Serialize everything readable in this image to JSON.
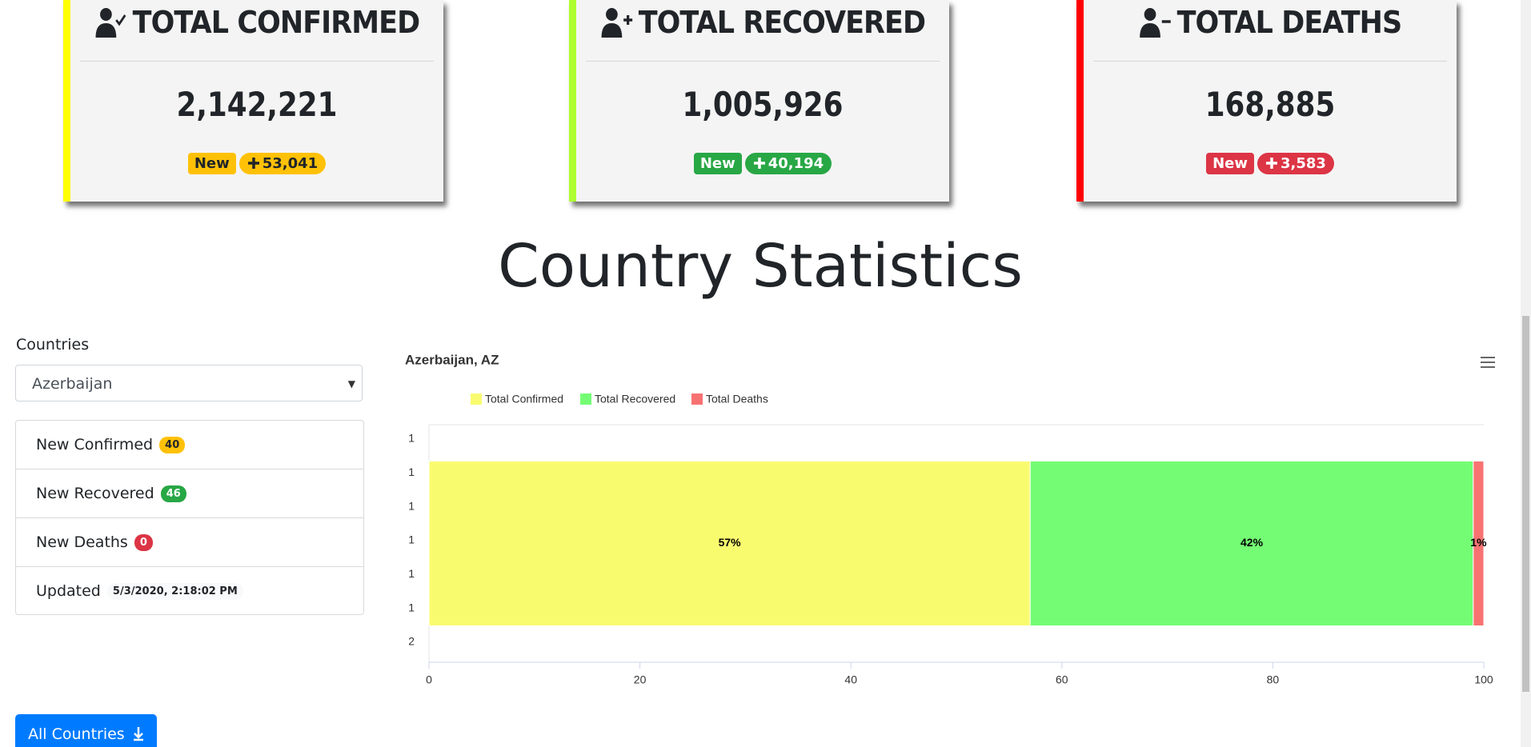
{
  "cards": [
    {
      "title": "TOTAL CONFIRMED",
      "value": "2,142,221",
      "badge": "New",
      "delta": "53,041"
    },
    {
      "title": "TOTAL RECOVERED",
      "value": "1,005,926",
      "badge": "New",
      "delta": "40,194"
    },
    {
      "title": "TOTAL DEATHS",
      "value": "168,885",
      "badge": "New",
      "delta": "3,583"
    }
  ],
  "heading": "Country Statistics",
  "countries_label": "Countries",
  "select": "Azerbaijan",
  "stats": [
    {
      "label": "New Confirmed",
      "value": 40
    },
    {
      "label": "New Recovered",
      "value": 46
    },
    {
      "label": "New Deaths",
      "value": 0
    },
    {
      "label": "Updated",
      "value": "5/3/2020, 2:18:02 PM"
    }
  ],
  "button": "All Countries",
  "chart_data": {
    "type": "bar",
    "orientation": "horizontal",
    "stacked": true,
    "title": "Azerbaijan, AZ",
    "categories": [
      null
    ],
    "series": [
      {
        "name": "Total Confirmed",
        "color": "#f9fb6f",
        "values": [
          57
        ],
        "value_labels": [
          "57%"
        ]
      },
      {
        "name": "Total Recovered",
        "color": "#74fd74",
        "values": [
          42
        ],
        "value_labels": [
          "42%"
        ]
      },
      {
        "name": "Total Deaths",
        "color": "#f87272",
        "values": [
          1
        ],
        "value_labels": [
          "1%"
        ]
      }
    ],
    "ylabels": [
      1,
      1,
      1,
      1,
      1,
      1,
      2
    ],
    "xlim": [
      0,
      100
    ],
    "xticks": [
      0,
      20,
      40,
      60,
      80,
      100
    ],
    "legend": "top"
  }
}
